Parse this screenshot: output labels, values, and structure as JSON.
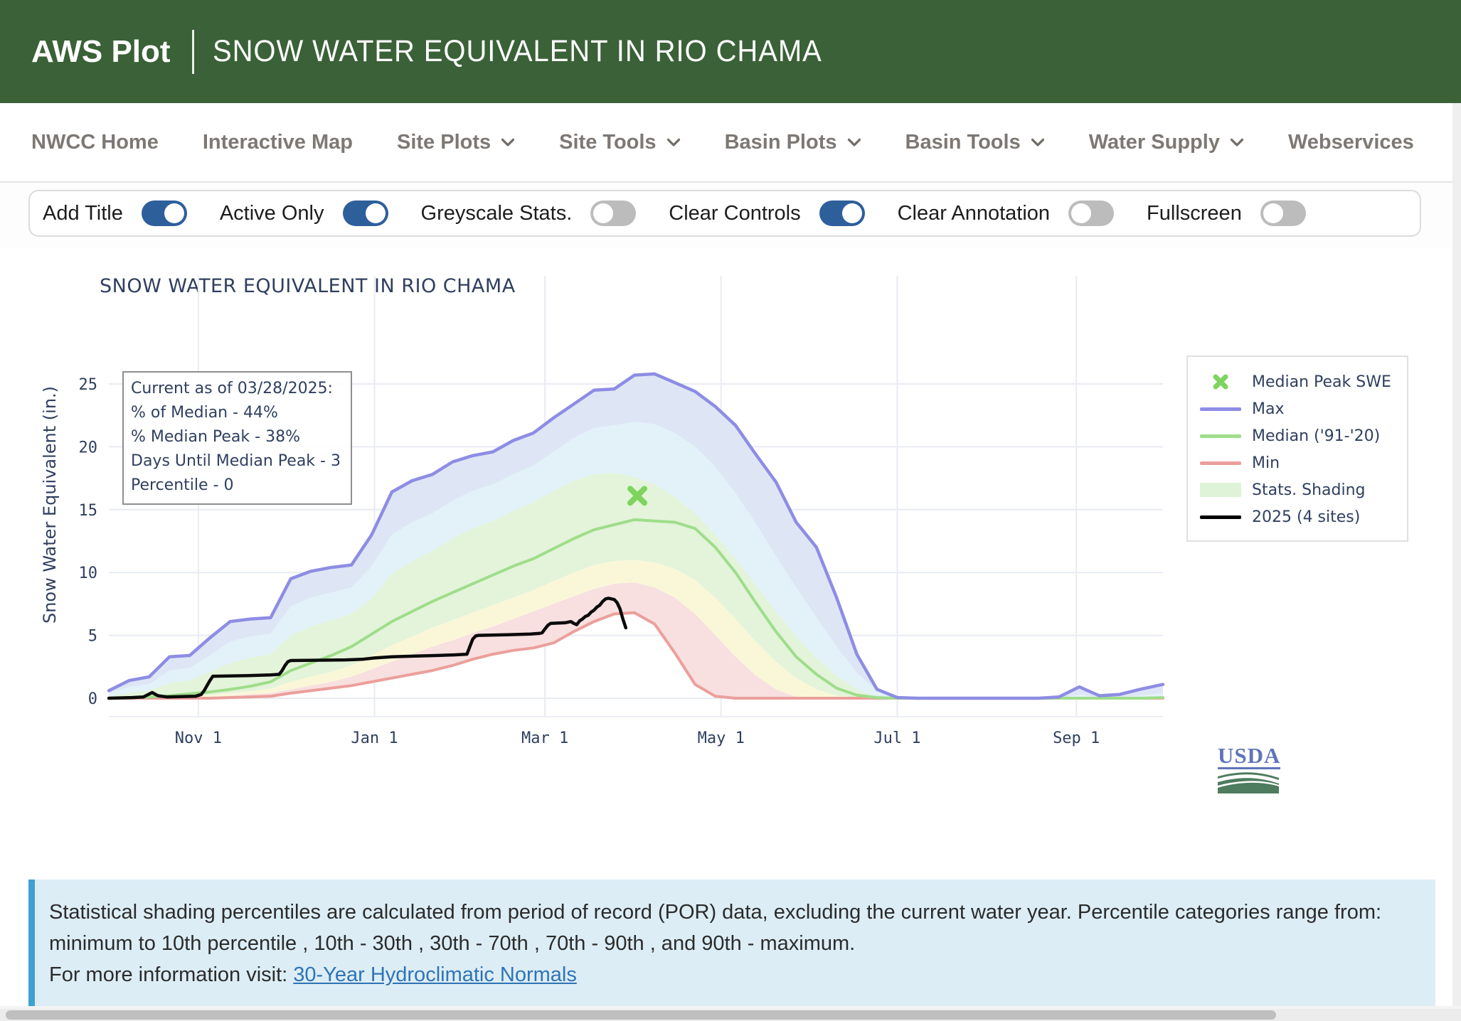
{
  "header": {
    "brand": "AWS Plot",
    "title": "SNOW WATER EQUIVALENT IN RIO CHAMA"
  },
  "nav": {
    "items": [
      {
        "label": "NWCC Home",
        "dropdown": false
      },
      {
        "label": "Interactive Map",
        "dropdown": false
      },
      {
        "label": "Site Plots",
        "dropdown": true
      },
      {
        "label": "Site Tools",
        "dropdown": true
      },
      {
        "label": "Basin Plots",
        "dropdown": true
      },
      {
        "label": "Basin Tools",
        "dropdown": true
      },
      {
        "label": "Water Supply",
        "dropdown": true
      },
      {
        "label": "Webservices",
        "dropdown": false
      }
    ]
  },
  "toggles": [
    {
      "label": "Add Title",
      "on": true
    },
    {
      "label": "Active Only",
      "on": true
    },
    {
      "label": "Greyscale Stats.",
      "on": false
    },
    {
      "label": "Clear Controls",
      "on": true
    },
    {
      "label": "Clear Annotation",
      "on": false
    },
    {
      "label": "Fullscreen",
      "on": false
    }
  ],
  "toggle_colors": {
    "on": "#2d5f9b",
    "off": "#bcbcbc"
  },
  "chart_data": {
    "type": "line",
    "title": "SNOW WATER EQUIVALENT IN RIO CHAMA",
    "ylabel": "Snow Water Equivalent (in.)",
    "xlabel": "",
    "x_tick_labels": [
      "Nov 1",
      "Jan 1",
      "Mar 1",
      "May 1",
      "Jul 1",
      "Sep 1"
    ],
    "x_tick_days": [
      31,
      92,
      151,
      212,
      273,
      335
    ],
    "y_ticks": [
      0,
      5,
      10,
      15,
      20,
      25
    ],
    "x_range_days": [
      0,
      365
    ],
    "y_range": [
      -1.47,
      33.6
    ],
    "grid": true,
    "legend_position": "right",
    "annotation": {
      "lines": [
        "Current as of 03/28/2025:",
        "% of Median - 44%",
        "% Median Peak - 38%",
        "Days Until Median Peak - 3",
        "Percentile - 0"
      ]
    },
    "legend": [
      {
        "label": "Median Peak SWE",
        "symbol": "x-marker",
        "color": "#7ed45f"
      },
      {
        "label": "Max",
        "symbol": "line",
        "color": "#8d8de4"
      },
      {
        "label": "Median ('91-'20)",
        "symbol": "line",
        "color": "#9fdd8a"
      },
      {
        "label": "Min",
        "symbol": "line",
        "color": "#eb9f9b"
      },
      {
        "label": "Stats. Shading",
        "symbol": "fill",
        "color": "#def3d8"
      },
      {
        "label": "2025 (4 sites)",
        "symbol": "line",
        "color": "#000000"
      }
    ],
    "median_peak_marker": {
      "day": 183,
      "value": 16.1,
      "color": "#7ed45f"
    },
    "grid_days": [
      0,
      7,
      14,
      21,
      28,
      35,
      42,
      49,
      56,
      63,
      70,
      77,
      84,
      91,
      98,
      105,
      112,
      119,
      126,
      133,
      140,
      147,
      154,
      161,
      168,
      175,
      182,
      189,
      196,
      203,
      210,
      217,
      224,
      231,
      238,
      245,
      252,
      259,
      266,
      273,
      280,
      287,
      294,
      301,
      308,
      315,
      322,
      329,
      336,
      343,
      350,
      357,
      365
    ],
    "series": {
      "max": {
        "color": "#8d8de4",
        "width": 4.5,
        "values": [
          0.6,
          1.4,
          1.7,
          3.3,
          3.4,
          4.8,
          6.1,
          6.3,
          6.4,
          9.5,
          10.1,
          10.4,
          10.6,
          13.0,
          16.4,
          17.3,
          17.8,
          18.8,
          19.3,
          19.6,
          20.5,
          21.1,
          22.3,
          23.4,
          24.5,
          24.6,
          25.7,
          25.8,
          25.1,
          24.4,
          23.2,
          21.7,
          19.4,
          17.2,
          14.0,
          12.0,
          8.0,
          3.5,
          0.7,
          0.05,
          0,
          0,
          0,
          0,
          0,
          0,
          0,
          0.1,
          0.9,
          0.2,
          0.3,
          0.7,
          1.1
        ]
      },
      "p90": {
        "color": null,
        "width": 0,
        "values": [
          0.4,
          0.9,
          1.1,
          2.2,
          2.4,
          3.4,
          4.5,
          4.9,
          5.1,
          7.3,
          8.0,
          8.4,
          8.8,
          10.5,
          13.0,
          14.0,
          14.7,
          15.7,
          16.5,
          17.0,
          17.8,
          18.5,
          19.6,
          20.7,
          21.5,
          21.7,
          22.0,
          21.8,
          21.1,
          20.0,
          18.4,
          16.3,
          13.9,
          11.3,
          8.8,
          6.4,
          4.1,
          2.0,
          0.6,
          0.05,
          0,
          0,
          0,
          0,
          0,
          0,
          0,
          0,
          0.3,
          0.05,
          0.1,
          0.2,
          0.4
        ]
      },
      "p70": {
        "color": null,
        "width": 0,
        "values": [
          0.15,
          0.4,
          0.6,
          1.2,
          1.4,
          2.1,
          2.8,
          3.2,
          3.5,
          5.0,
          5.7,
          6.2,
          6.7,
          7.9,
          9.9,
          10.9,
          11.7,
          12.7,
          13.5,
          14.1,
          14.9,
          15.6,
          16.5,
          17.3,
          17.8,
          17.9,
          17.6,
          17.0,
          16.0,
          14.7,
          13.0,
          11.1,
          9.0,
          6.9,
          4.9,
          3.2,
          1.8,
          0.7,
          0.1,
          0,
          0,
          0,
          0,
          0,
          0,
          0,
          0,
          0,
          0.1,
          0,
          0,
          0.05,
          0.15
        ]
      },
      "median": {
        "color": "#9fdd8a",
        "width": 4,
        "values": [
          0,
          0.05,
          0.1,
          0.2,
          0.35,
          0.5,
          0.7,
          0.95,
          1.3,
          2.2,
          2.8,
          3.4,
          4.1,
          5.1,
          6.1,
          6.9,
          7.7,
          8.4,
          9.1,
          9.8,
          10.5,
          11.1,
          11.9,
          12.7,
          13.4,
          13.8,
          14.2,
          14.1,
          14.0,
          13.5,
          12.0,
          10.0,
          7.6,
          5.3,
          3.3,
          1.9,
          0.8,
          0.25,
          0.05,
          0,
          0,
          0,
          0,
          0,
          0,
          0,
          0,
          0,
          0,
          0,
          0,
          0,
          0.05
        ]
      },
      "p30": {
        "color": null,
        "width": 0,
        "values": [
          0,
          0,
          0.05,
          0.1,
          0.15,
          0.25,
          0.4,
          0.55,
          0.75,
          1.3,
          1.7,
          2.1,
          2.6,
          3.4,
          4.2,
          4.9,
          5.6,
          6.2,
          6.8,
          7.4,
          8.0,
          8.6,
          9.3,
          10.0,
          10.6,
          10.9,
          11.0,
          10.8,
          10.3,
          9.4,
          8.0,
          6.3,
          4.5,
          2.9,
          1.6,
          0.7,
          0.2,
          0.05,
          0,
          0,
          0,
          0,
          0,
          0,
          0,
          0,
          0,
          0,
          0,
          0,
          0,
          0,
          0
        ]
      },
      "p10": {
        "color": null,
        "width": 0,
        "values": [
          0,
          0,
          0,
          0.05,
          0.05,
          0.1,
          0.2,
          0.3,
          0.4,
          0.7,
          1.0,
          1.3,
          1.7,
          2.3,
          2.9,
          3.5,
          4.1,
          4.6,
          5.2,
          5.7,
          6.3,
          6.9,
          7.5,
          8.1,
          8.7,
          9.1,
          9.2,
          8.8,
          8.0,
          6.7,
          5.0,
          3.3,
          1.8,
          0.7,
          0.1,
          0,
          0,
          0,
          0,
          0,
          0,
          0,
          0,
          0,
          0,
          0,
          0,
          0,
          0,
          0,
          0,
          0,
          0
        ]
      },
      "min": {
        "color": "#eb9f9b",
        "width": 4,
        "values": [
          0,
          0,
          0,
          0,
          0,
          0,
          0.05,
          0.1,
          0.15,
          0.4,
          0.6,
          0.8,
          1.0,
          1.3,
          1.6,
          1.9,
          2.2,
          2.6,
          3.1,
          3.5,
          3.8,
          4.0,
          4.4,
          5.3,
          6.1,
          6.7,
          6.8,
          5.9,
          3.6,
          1.1,
          0.15,
          0,
          0,
          0,
          0,
          0,
          0,
          0,
          0,
          0,
          0,
          0,
          0,
          0,
          0,
          0,
          0,
          0,
          0,
          0,
          0,
          0,
          0
        ]
      },
      "current_2025": {
        "color": "#0b0b0b",
        "width": 4.5,
        "days": [
          0,
          8,
          12,
          15,
          17,
          20,
          30,
          32,
          33,
          34,
          35,
          36,
          48,
          56,
          59,
          60,
          61,
          62,
          63,
          82,
          88,
          92,
          98,
          106,
          114,
          120,
          124,
          125,
          126,
          127,
          128,
          138,
          146,
          149,
          150,
          151,
          152,
          153,
          158,
          160,
          161,
          162,
          163,
          164,
          165,
          166,
          167,
          168,
          169,
          170,
          171,
          172,
          173,
          174,
          175,
          176,
          177,
          178,
          179
        ],
        "values": [
          0,
          0.05,
          0.1,
          0.45,
          0.2,
          0.1,
          0.15,
          0.3,
          0.6,
          1.0,
          1.4,
          1.75,
          1.8,
          1.85,
          1.9,
          2.2,
          2.6,
          2.9,
          3.0,
          3.05,
          3.1,
          3.2,
          3.3,
          3.35,
          3.4,
          3.45,
          3.5,
          4.1,
          4.7,
          4.95,
          5.0,
          5.05,
          5.1,
          5.15,
          5.2,
          5.5,
          5.8,
          5.95,
          6.0,
          6.1,
          5.95,
          5.85,
          6.15,
          6.3,
          6.5,
          6.6,
          6.85,
          7.0,
          7.25,
          7.4,
          7.7,
          7.9,
          7.95,
          7.9,
          7.85,
          7.6,
          7.1,
          6.3,
          5.6
        ]
      }
    },
    "bands": [
      {
        "upper": "max",
        "lower": "p90",
        "color": "#dee6f6"
      },
      {
        "upper": "p90",
        "lower": "p70",
        "color": "#e2f2f8"
      },
      {
        "upper": "p70",
        "lower": "p30",
        "color": "#e3f4da"
      },
      {
        "upper": "p30",
        "lower": "p10",
        "color": "#faf7d9"
      },
      {
        "upper": "p10",
        "lower": "min",
        "color": "#f7e0df"
      }
    ],
    "draw_lines": [
      "min",
      "median",
      "max",
      "current_2025"
    ]
  },
  "usda": {
    "label": "USDA"
  },
  "info_box": {
    "text": "Statistical shading percentiles are calculated from period of record (POR) data, excluding the current water year. Percentile categories range from: minimum to 10th percentile , 10th - 30th , 30th - 70th , 70th - 90th , and 90th - maximum.",
    "more_info_prefix": "For more information visit: ",
    "link_label": "30-Year Hydroclimatic Normals"
  }
}
